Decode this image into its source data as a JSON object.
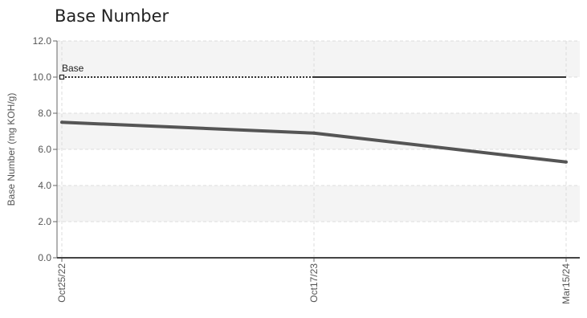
{
  "chart_data": {
    "type": "line",
    "title": "Base Number",
    "xlabel": "",
    "ylabel": "Base Number (mg KOH/g)",
    "categories": [
      "Oct25/22",
      "Oct17/23",
      "Mar15/24"
    ],
    "ylim": [
      0,
      12
    ],
    "yticks": [
      "0.0",
      "2.0",
      "4.0",
      "6.0",
      "8.0",
      "10.0",
      "12.0"
    ],
    "grid": true,
    "series": [
      {
        "values": [
          7.5,
          6.9,
          5.3
        ],
        "color": "#555555"
      }
    ],
    "reference_line": {
      "label": "Base",
      "value": 10.0,
      "color": "#333333"
    },
    "band_color": "#f4f4f4"
  }
}
